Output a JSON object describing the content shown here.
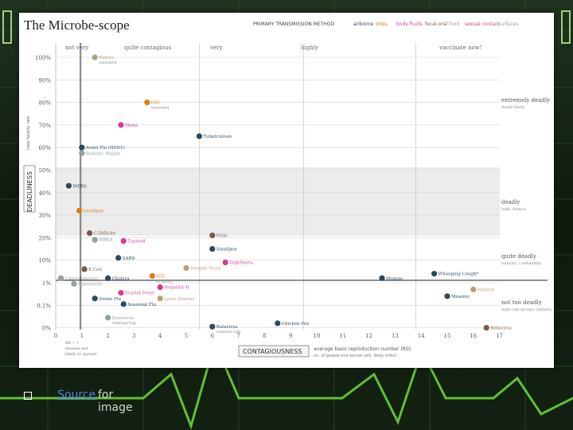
{
  "chart_data": {
    "type": "scatter",
    "title": "The Microbe-scope",
    "transmission_legend": {
      "title": "PRIMARY TRANSMISSION METHOD",
      "items": [
        {
          "label": "airborne",
          "color": "#2b4a5e"
        },
        {
          "label": "bites",
          "color": "#e07b1a"
        },
        {
          "label": "body fluids",
          "color": "#d63b92"
        },
        {
          "label": "fecal-oral",
          "color": "#7a5a4a"
        },
        {
          "label": "food",
          "color": "#b4a07a"
        },
        {
          "label": "sexual contact",
          "color": "#c24a7a"
        },
        {
          "label": "surfaces",
          "color": "#8fa39a"
        }
      ]
    },
    "top_categories": [
      "not very",
      "quite contagious",
      "very",
      "highly",
      "vaccinate now!"
    ],
    "right_categories": [
      {
        "title": "extremely deadly",
        "sub": "death likely"
      },
      {
        "title": "deadly",
        "sub": "high chance"
      },
      {
        "title": "quite deadly",
        "sub": "unlucky / unhealthy"
      },
      {
        "title": "not too deadly",
        "sub": "high-risk groups (infants, the aged)"
      }
    ],
    "xlabel": "CONTAGIOUSNESS",
    "xlabel_note": "average basic reproduction number (R0)",
    "xlabel_note2": "no. of people one person will, likely infect",
    "ylabel": "DEADLINESS",
    "ylabel_note": "case fatality rate",
    "r0_note": [
      "R0 = 1",
      "disease not",
      "likely to spread"
    ],
    "xlim": [
      0,
      17
    ],
    "x_ticks": [
      "0",
      "1",
      "2",
      "3",
      "4",
      "5",
      "6",
      "7",
      "8",
      "9",
      "10",
      "11",
      "12",
      "13",
      "14",
      "15",
      "16",
      "17"
    ],
    "y_ticks": [
      "100%",
      "90%",
      "80%",
      "70%",
      "60%",
      "50%",
      "40%",
      "30%",
      "20%",
      "10%",
      "1%",
      "0.1%",
      "0%"
    ],
    "points": [
      {
        "name": "Rabies",
        "sub": "untreated",
        "r0": 1.5,
        "yi": 0,
        "color": "#b4a07a"
      },
      {
        "name": "HIV",
        "sub": "untreated",
        "r0": 3.5,
        "yi": 2,
        "color": "#e07b1a"
      },
      {
        "name": "Ebola",
        "sub": "",
        "r0": 2.5,
        "yi": 3,
        "color": "#d63b92"
      },
      {
        "name": "Tuberculosis",
        "sub": "",
        "r0": 5.5,
        "yi": 3.5,
        "color": "#2b4a5e"
      },
      {
        "name": "Avian Flu (H5N1)",
        "sub": "",
        "r0": 1.0,
        "yi": 4,
        "color": "#2b4a5e"
      },
      {
        "name": "Bubonic Plague",
        "sub": "",
        "r0": 1.0,
        "yi": 4.25,
        "color": "#8fa39a"
      },
      {
        "name": "MERS",
        "sub": "",
        "r0": 0.5,
        "yi": 5.7,
        "color": "#2b4a5e"
      },
      {
        "name": "Smallpox",
        "sub": "",
        "r0": 0.9,
        "yi": 6.8,
        "color": "#e07b1a"
      },
      {
        "name": "C.Difficile",
        "sub": "",
        "r0": 1.3,
        "yi": 7.8,
        "color": "#7a5a4a"
      },
      {
        "name": "MRSA",
        "sub": "",
        "r0": 1.5,
        "yi": 8.1,
        "color": "#8fa39a"
      },
      {
        "name": "Typhoid",
        "sub": "",
        "r0": 2.6,
        "yi": 8.15,
        "color": "#d63b92"
      },
      {
        "name": "Polio",
        "sub": "",
        "r0": 6.0,
        "yi": 7.9,
        "color": "#7a5a4a"
      },
      {
        "name": "Smallpox",
        "sub": "",
        "r0": 6.0,
        "yi": 8.5,
        "color": "#2b4a5e"
      },
      {
        "name": "SARS",
        "sub": "",
        "r0": 2.4,
        "yi": 8.9,
        "color": "#2b4a5e"
      },
      {
        "name": "Diphtheria",
        "sub": "",
        "r0": 6.5,
        "yi": 9.1,
        "color": "#d63b92"
      },
      {
        "name": "E.Coli",
        "sub": "",
        "r0": 1.1,
        "yi": 9.4,
        "color": "#7a5a4a"
      },
      {
        "name": "Dengue Fever",
        "sub": "",
        "r0": 5.0,
        "yi": 9.35,
        "color": "#b4a07a"
      },
      {
        "name": "HIV",
        "sub": "(treated)",
        "r0": 3.7,
        "yi": 9.7,
        "color": "#e07b1a"
      },
      {
        "name": "Campylobacter",
        "sub": "",
        "r0": 0.2,
        "yi": 9.8,
        "color": "#8fa39a"
      },
      {
        "name": "Cholera",
        "sub": "",
        "r0": 2.0,
        "yi": 9.8,
        "color": "#2b4a5e"
      },
      {
        "name": "Salmonella",
        "sub": "",
        "r0": 0.7,
        "yi": 10.05,
        "color": "#8fa39a"
      },
      {
        "name": "Hepatitis B",
        "sub": "",
        "r0": 4.0,
        "yi": 10.2,
        "color": "#d63b92"
      },
      {
        "name": "Scarlet Fever",
        "sub": "",
        "r0": 2.5,
        "yi": 10.45,
        "color": "#d63b92"
      },
      {
        "name": "Swine Flu",
        "sub": "",
        "r0": 1.5,
        "yi": 10.7,
        "color": "#2b4a5e"
      },
      {
        "name": "Lyme Disease",
        "sub": "",
        "r0": 4.0,
        "yi": 10.7,
        "color": "#b4a07a"
      },
      {
        "name": "Seasonal Flu",
        "sub": "",
        "r0": 2.6,
        "yi": 10.95,
        "color": "#2b4a5e"
      },
      {
        "name": "Mumps",
        "sub": "",
        "r0": 12.5,
        "yi": 9.8,
        "color": "#2b4a5e"
      },
      {
        "name": "Whooping Cough*",
        "sub": "",
        "r0": 14.5,
        "yi": 9.6,
        "color": "#2b4a5e"
      },
      {
        "name": "Malaria",
        "sub": "",
        "r0": 16.0,
        "yi": 10.3,
        "color": "#b4a07a"
      },
      {
        "name": "Measles",
        "sub": "",
        "r0": 15.0,
        "yi": 10.6,
        "color": "#2b4a5e"
      },
      {
        "name": "Norovirus",
        "sub": "vomiting bug",
        "r0": 2.0,
        "yi": 11.55,
        "color": "#8fa39a"
      },
      {
        "name": "Rotavirus",
        "sub": "common cold",
        "r0": 6.0,
        "yi": 11.95,
        "color": "#2b4a5e"
      },
      {
        "name": "Chicken Pox",
        "sub": "",
        "r0": 8.5,
        "yi": 11.8,
        "color": "#2b4a5e"
      },
      {
        "name": "Rotavirus",
        "sub": "",
        "r0": 16.5,
        "yi": 12.0,
        "color": "#7a5a4a"
      }
    ]
  },
  "footer": {
    "link_text": "Source",
    "rest_text": " for image"
  }
}
